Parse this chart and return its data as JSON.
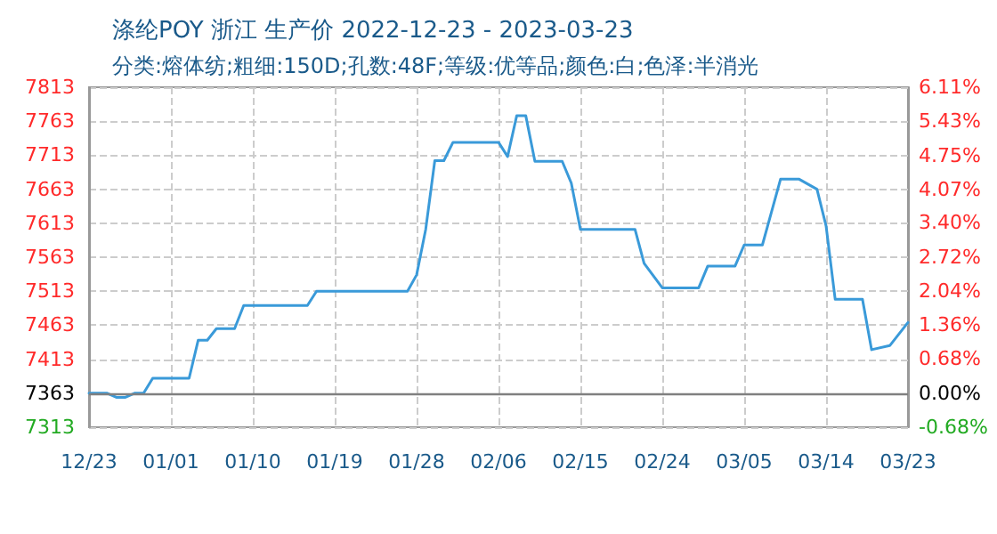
{
  "chart_data": {
    "type": "line",
    "title": "涤纶POY 浙江 生产价 2022-12-23 - 2023-03-23",
    "subtitle": "分类:熔体纺;粗细:150D;孔数:48F;等级:优等品;颜色:白;色泽:半消光",
    "x": [
      "2022-12-23",
      "2022-12-25",
      "2022-12-26",
      "2022-12-27",
      "2022-12-28",
      "2022-12-29",
      "2022-12-30",
      "2023-01-03",
      "2023-01-04",
      "2023-01-05",
      "2023-01-06",
      "2023-01-08",
      "2023-01-09",
      "2023-01-16",
      "2023-01-17",
      "2023-01-27",
      "2023-01-28",
      "2023-01-29",
      "2023-01-30",
      "2023-01-31",
      "2023-02-01",
      "2023-02-06",
      "2023-02-07",
      "2023-02-08",
      "2023-02-09",
      "2023-02-10",
      "2023-02-13",
      "2023-02-14",
      "2023-02-15",
      "2023-02-21",
      "2023-02-22",
      "2023-02-24",
      "2023-02-28",
      "2023-03-01",
      "2023-03-04",
      "2023-03-05",
      "2023-03-07",
      "2023-03-09",
      "2023-03-11",
      "2023-03-13",
      "2023-03-14",
      "2023-03-15",
      "2023-03-18",
      "2023-03-19",
      "2023-03-21",
      "2023-03-23"
    ],
    "series": [
      {
        "color": "#3a9ad9",
        "values": [
          7363,
          7363,
          7357,
          7357,
          7363,
          7363,
          7385,
          7385,
          7441,
          7441,
          7458,
          7458,
          7492,
          7492,
          7513,
          7513,
          7537,
          7604,
          7705,
          7705,
          7732,
          7732,
          7711,
          7771,
          7771,
          7704,
          7704,
          7672,
          7604,
          7604,
          7554,
          7518,
          7518,
          7550,
          7550,
          7581,
          7581,
          7678,
          7678,
          7663,
          7609,
          7501,
          7501,
          7427,
          7433,
          7467
        ]
      }
    ],
    "xlim": [
      "2022-12-23",
      "2023-03-23"
    ],
    "xticks": [
      {
        "value": "2022-12-23",
        "label": "12/23"
      },
      {
        "value": "2023-01-01",
        "label": "01/01"
      },
      {
        "value": "2023-01-10",
        "label": "01/10"
      },
      {
        "value": "2023-01-19",
        "label": "01/19"
      },
      {
        "value": "2023-01-28",
        "label": "01/28"
      },
      {
        "value": "2023-02-06",
        "label": "02/06"
      },
      {
        "value": "2023-02-15",
        "label": "02/15"
      },
      {
        "value": "2023-02-24",
        "label": "02/24"
      },
      {
        "value": "2023-03-05",
        "label": "03/05"
      },
      {
        "value": "2023-03-14",
        "label": "03/14"
      },
      {
        "value": "2023-03-23",
        "label": "03/23"
      }
    ],
    "ylim": [
      7313,
      7813
    ],
    "yticks": [
      7313,
      7363,
      7413,
      7463,
      7513,
      7563,
      7613,
      7663,
      7713,
      7763,
      7813
    ],
    "y2lim": [
      -0.68,
      6.11
    ],
    "y2ticks": [
      {
        "value": -0.68,
        "label": "-0.68%"
      },
      {
        "value": 0,
        "label": "0.00%"
      },
      {
        "value": 0.68,
        "label": "0.68%"
      },
      {
        "value": 1.36,
        "label": "1.36%"
      },
      {
        "value": 2.04,
        "label": "2.04%"
      },
      {
        "value": 2.72,
        "label": "2.72%"
      },
      {
        "value": 3.4,
        "label": "3.40%"
      },
      {
        "value": 4.07,
        "label": "4.07%"
      },
      {
        "value": 4.75,
        "label": "4.75%"
      },
      {
        "value": 5.43,
        "label": "5.43%"
      },
      {
        "value": 6.11,
        "label": "6.11%"
      }
    ],
    "ref_lines": [
      {
        "axis": "y",
        "value": 7363,
        "color": "#808080",
        "line_style": "solid"
      }
    ],
    "grid": true,
    "marker": "none",
    "line_style": "solid"
  }
}
